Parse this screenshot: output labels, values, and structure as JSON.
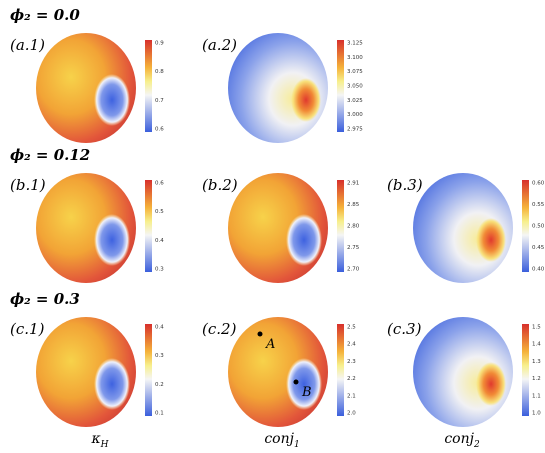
{
  "rows": [
    {
      "title": "ϕ₂ = 0.0",
      "panels": [
        {
          "label": "(a.1)",
          "ticks": [
            "0.9",
            "0.8",
            "0.7",
            "0.6"
          ]
        },
        {
          "label": "(a.2)",
          "ticks": [
            "3.125",
            "3.100",
            "3.075",
            "3.050",
            "3.025",
            "3.000",
            "2.975"
          ]
        }
      ]
    },
    {
      "title": "ϕ₂ = 0.12",
      "panels": [
        {
          "label": "(b.1)",
          "ticks": [
            "0.6",
            "0.5",
            "0.4",
            "0.3"
          ]
        },
        {
          "label": "(b.2)",
          "ticks": [
            "2.91",
            "2.85",
            "2.80",
            "2.75",
            "2.70"
          ]
        },
        {
          "label": "(b.3)",
          "ticks": [
            "0.60",
            "0.55",
            "0.50",
            "0.45",
            "0.40"
          ]
        }
      ]
    },
    {
      "title": "ϕ₂ = 0.3",
      "panels": [
        {
          "label": "(c.1)",
          "ticks": [
            "0.4",
            "0.3",
            "0.2",
            "0.1"
          ]
        },
        {
          "label": "(c.2)",
          "ticks": [
            "2.5",
            "2.4",
            "2.3",
            "2.2",
            "2.1",
            "2.0"
          ],
          "annotations": [
            "A",
            "B"
          ]
        },
        {
          "label": "(c.3)",
          "ticks": [
            "1.5",
            "1.4",
            "1.3",
            "1.2",
            "1.1",
            "1.0"
          ]
        }
      ]
    }
  ],
  "columns": [
    {
      "base": "κ",
      "sub": "H"
    },
    {
      "base": "conj",
      "sub": "1"
    },
    {
      "base": "conj",
      "sub": "2"
    }
  ]
}
